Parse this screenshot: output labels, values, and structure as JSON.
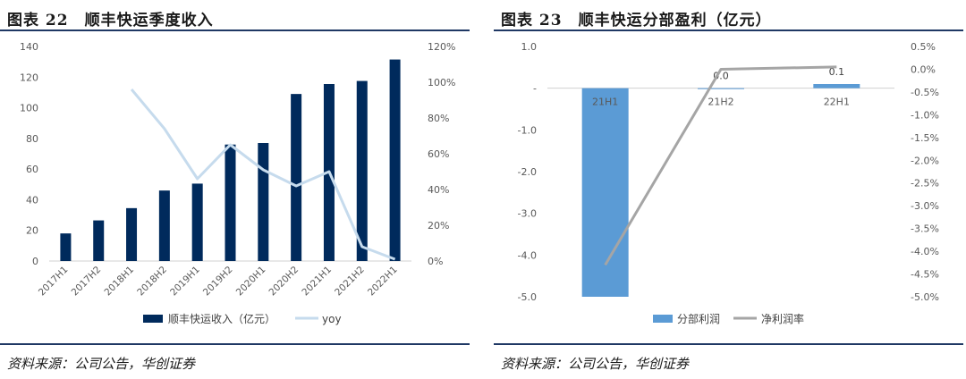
{
  "left_panel": {
    "title": "图表 22　顺丰快运季度收入",
    "source": "资料来源：公司公告，华创证券"
  },
  "right_panel": {
    "title": "图表 23　顺丰快运分部盈利（亿元）",
    "source": "资料来源：公司公告，华创证券"
  },
  "chart_data": [
    {
      "type": "bar",
      "categories": [
        "2017H1",
        "2017H2",
        "2018H1",
        "2018H2",
        "2019H1",
        "2019H2",
        "2020H1",
        "2020H2",
        "2021H1",
        "2021H2",
        "2022H1"
      ],
      "series": [
        {
          "name": "顺丰快运收入（亿元）",
          "type": "bar",
          "axis": "left",
          "values": [
            18,
            26.5,
            34.5,
            46,
            50.5,
            76,
            77,
            109,
            115.5,
            117.5,
            131.5
          ],
          "color": "#002a5c"
        },
        {
          "name": "yoy",
          "type": "line",
          "axis": "right",
          "values": [
            null,
            null,
            0.96,
            0.74,
            0.46,
            0.65,
            0.51,
            0.42,
            0.5,
            0.08,
            0.01
          ],
          "color": "#c6dbed"
        }
      ],
      "y_left": {
        "min": 0,
        "max": 140,
        "ticks": [
          "0",
          "20",
          "40",
          "60",
          "80",
          "100",
          "120",
          "140"
        ]
      },
      "y_right": {
        "min": 0,
        "max": 1.2,
        "ticks": [
          "0%",
          "20%",
          "40%",
          "60%",
          "80%",
          "100%",
          "120%"
        ]
      },
      "legend_position": "bottom"
    },
    {
      "type": "bar",
      "categories": [
        "21H1",
        "21H2",
        "22H1"
      ],
      "series": [
        {
          "name": "分部利润",
          "type": "bar",
          "axis": "left",
          "values": [
            -5.0,
            0.0,
            0.1
          ],
          "data_labels": [
            "",
            "0.0",
            "0.1"
          ],
          "color": "#5b9bd5"
        },
        {
          "name": "净利润率",
          "type": "line",
          "axis": "right",
          "values": [
            -4.3,
            0.0,
            0.05
          ],
          "color": "#a5a5a5"
        }
      ],
      "y_left": {
        "min": -5,
        "max": 1,
        "ticks": [
          "-5.0",
          "-4.0",
          "-3.0",
          "-2.0",
          "-1.0",
          "-",
          "1.0"
        ]
      },
      "y_right": {
        "min": -5,
        "max": 0.5,
        "ticks": [
          "-5.0%",
          "-4.5%",
          "-4.0%",
          "-3.5%",
          "-3.0%",
          "-2.5%",
          "-2.0%",
          "-1.5%",
          "-1.0%",
          "-0.5%",
          "0.0%",
          "0.5%"
        ]
      },
      "legend_position": "bottom"
    }
  ]
}
